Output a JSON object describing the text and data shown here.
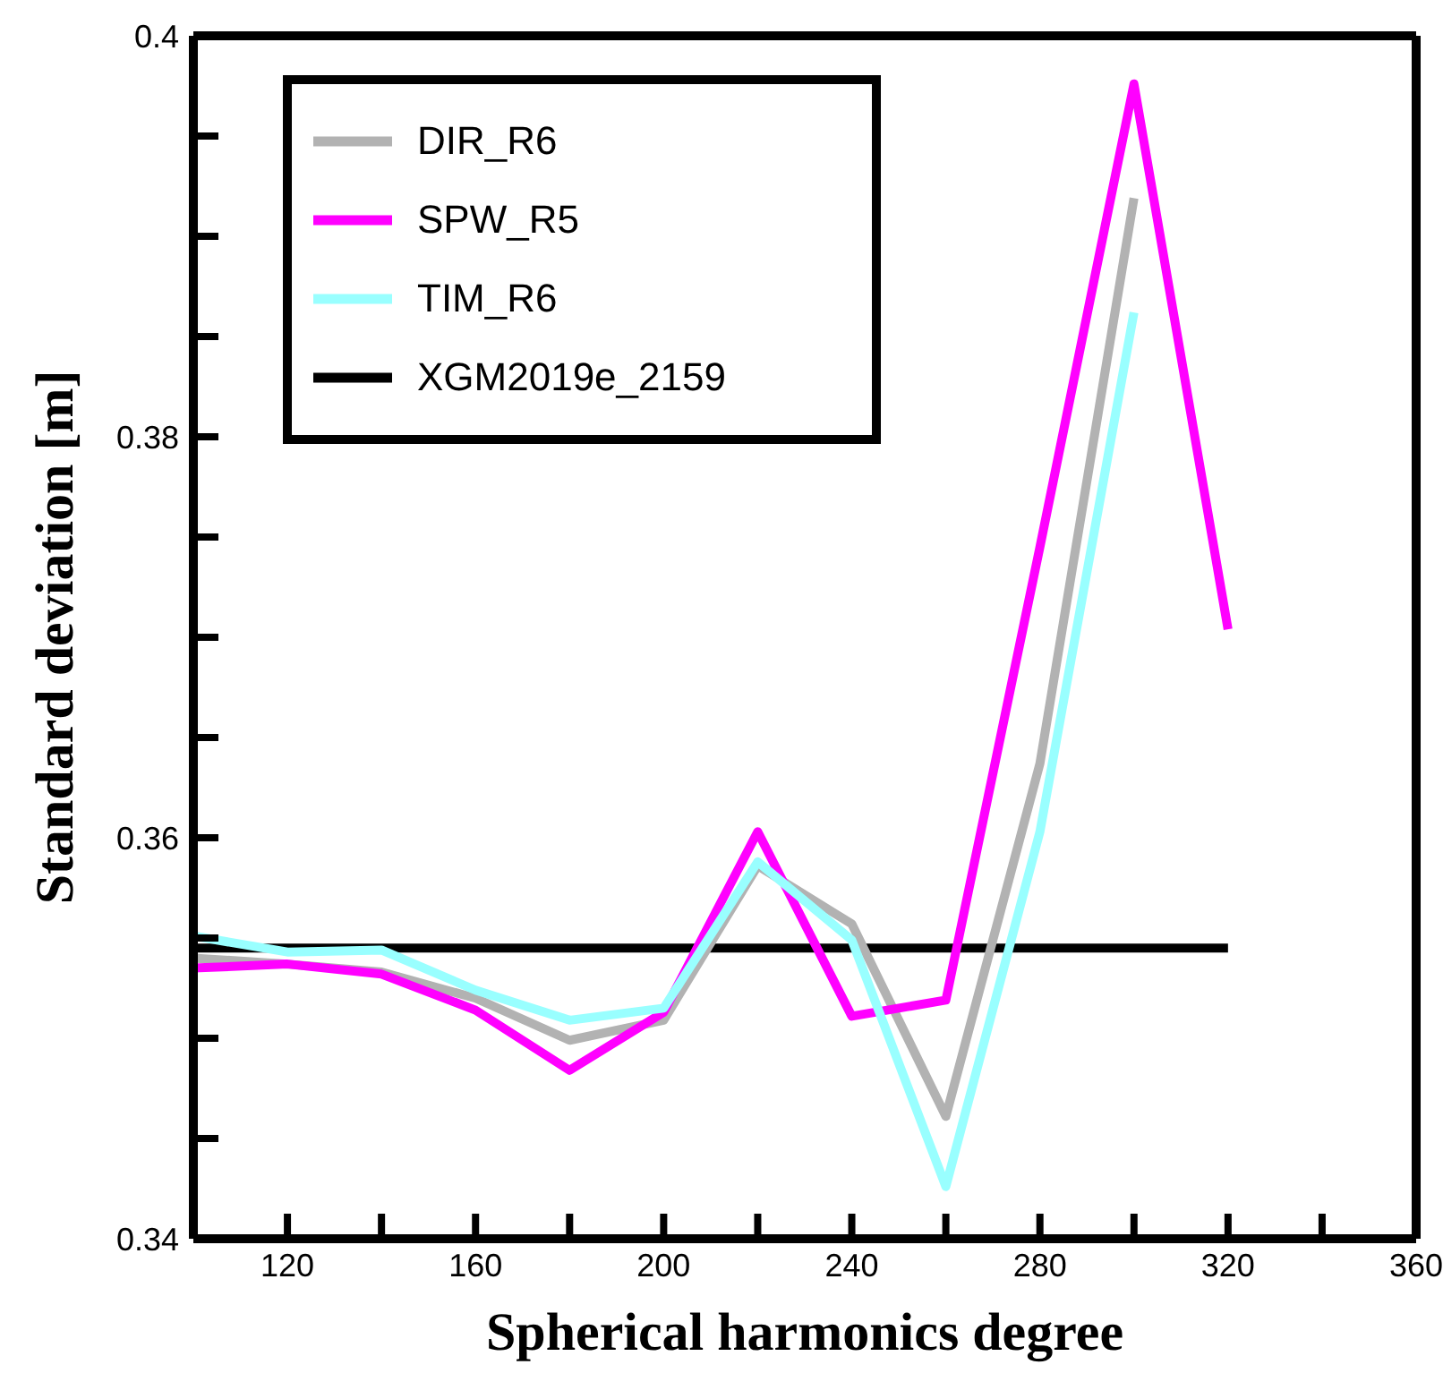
{
  "chart_data": {
    "type": "line",
    "xlabel": "Spherical harmonics degree",
    "ylabel": "Standard deviation [m]",
    "x": [
      100,
      120,
      140,
      160,
      180,
      200,
      220,
      240,
      260,
      280,
      300,
      320
    ],
    "series": [
      {
        "name": "XGM2019e_2159",
        "color": "#000000",
        "values": [
          0.3545,
          0.3545,
          0.3545,
          0.3545,
          0.3545,
          0.3545,
          0.3545,
          0.3545,
          0.3545,
          0.3545,
          0.3545,
          0.3545
        ]
      },
      {
        "name": "DIR_R6",
        "color": "#b2b2b2",
        "values": [
          0.354,
          0.3537,
          0.3533,
          0.352,
          0.3499,
          0.3509,
          0.3586,
          0.3557,
          0.3461,
          0.3637,
          0.3919,
          null
        ]
      },
      {
        "name": "SPW_R5",
        "color": "#ff00ff",
        "values": [
          0.3535,
          0.3537,
          0.3532,
          0.3514,
          0.3484,
          0.3513,
          0.3603,
          0.3511,
          0.3519,
          0.3745,
          0.3976,
          0.3704
        ]
      },
      {
        "name": "TIM_R6",
        "color": "#99ffff",
        "values": [
          0.3551,
          0.3543,
          0.3544,
          0.3524,
          0.3509,
          0.3515,
          0.3588,
          0.3549,
          0.3426,
          0.3603,
          0.3862,
          null
        ]
      }
    ],
    "xlim": [
      100,
      360
    ],
    "xticks": [
      {
        "value": 100,
        "label": null
      },
      120,
      {
        "value": 140,
        "label": null
      },
      160,
      {
        "value": 180,
        "label": null
      },
      200,
      {
        "value": 220,
        "label": null
      },
      240,
      {
        "value": 260,
        "label": null
      },
      280,
      {
        "value": 300,
        "label": null
      },
      320,
      {
        "value": 340,
        "label": null
      },
      360
    ],
    "ylim": [
      0.34,
      0.4
    ],
    "yticks": [
      0.34,
      {
        "value": 0.345,
        "label": null
      },
      {
        "value": 0.35,
        "label": null
      },
      {
        "value": 0.355,
        "label": null
      },
      0.36,
      {
        "value": 0.365,
        "label": null
      },
      {
        "value": 0.37,
        "label": null
      },
      {
        "value": 0.375,
        "label": null
      },
      0.38,
      {
        "value": 0.385,
        "label": null
      },
      {
        "value": 0.39,
        "label": null
      },
      {
        "value": 0.395,
        "label": null
      },
      0.4
    ],
    "grid": false,
    "legend": "top left",
    "marker": "none",
    "line_style": "solid"
  }
}
